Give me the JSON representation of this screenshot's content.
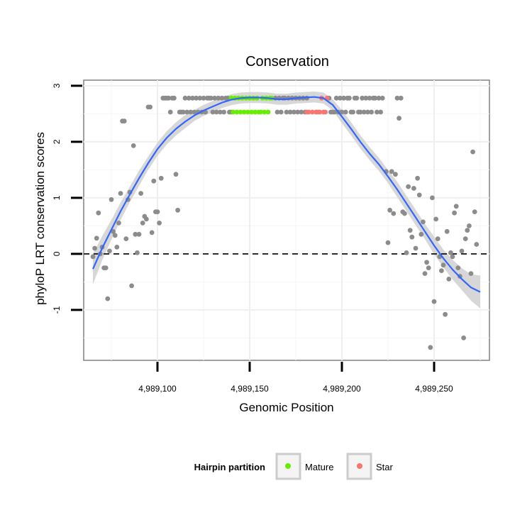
{
  "chart_data": {
    "type": "scatter",
    "title": "Conservation",
    "xlabel": "Genomic Position",
    "ylabel": "phyloP LRT conservation scores",
    "xlim": [
      4989060,
      4989280
    ],
    "ylim": [
      -1.9,
      3.1
    ],
    "x_ticks": [
      4989100,
      4989150,
      4989200,
      4989250
    ],
    "x_tick_labels": [
      "4,989,100",
      "4,989,150",
      "4,989,200",
      "4,989,250"
    ],
    "y_ticks": [
      -1,
      0,
      1,
      2,
      3
    ],
    "y_tick_labels": [
      "-1",
      "0",
      "1",
      "2",
      "3"
    ],
    "reference_line": {
      "y": 0,
      "style": "dashed"
    },
    "grid": true,
    "legend": {
      "title": "Hairpin partition",
      "position": "bottom",
      "entries": [
        {
          "label": "Mature",
          "color": "#66ee00"
        },
        {
          "label": "Star",
          "color": "#f8766d"
        }
      ]
    },
    "colors": {
      "points": "#8c8c8c",
      "mature": "#66ee00",
      "star": "#f8766d",
      "smooth_line": "#3366ff",
      "ribbon": "#d0d0d0",
      "panel_border": "#888888"
    },
    "series": [
      {
        "kind": "points",
        "points": [
          [
            4989065,
            -0.05
          ],
          [
            4989066,
            0.1
          ],
          [
            4989067,
            0.28
          ],
          [
            4989068,
            0.73
          ],
          [
            4989069,
            0.0
          ],
          [
            4989070,
            0.12
          ],
          [
            4989071,
            -0.25
          ],
          [
            4989072,
            -0.25
          ],
          [
            4989073,
            -0.8
          ],
          [
            4989074,
            0.05
          ],
          [
            4989075,
            0.97
          ],
          [
            4989076,
            0.4
          ],
          [
            4989077,
            0.33
          ],
          [
            4989078,
            0.12
          ],
          [
            4989079,
            0.55
          ],
          [
            4989080,
            1.08
          ],
          [
            4989081,
            2.37
          ],
          [
            4989082,
            2.37
          ],
          [
            4989083,
            0.27
          ],
          [
            4989084,
            0.97
          ],
          [
            4989085,
            1.1
          ],
          [
            4989086,
            -0.57
          ],
          [
            4989087,
            1.93
          ],
          [
            4989088,
            0.35
          ],
          [
            4989089,
            0.02
          ],
          [
            4989090,
            0.35
          ],
          [
            4989091,
            1.08
          ],
          [
            4989092,
            0.55
          ],
          [
            4989093,
            0.67
          ],
          [
            4989094,
            0.62
          ],
          [
            4989095,
            2.62
          ],
          [
            4989096,
            2.62
          ],
          [
            4989097,
            0.38
          ],
          [
            4989098,
            1.3
          ],
          [
            4989099,
            0.75
          ],
          [
            4989100,
            0.75
          ],
          [
            4989101,
            0.55
          ],
          [
            4989102,
            1.35
          ],
          [
            4989103,
            2.78
          ],
          [
            4989104,
            2.78
          ],
          [
            4989105,
            2.78
          ],
          [
            4989106,
            2.78
          ],
          [
            4989107,
            2.53
          ],
          [
            4989108,
            2.78
          ],
          [
            4989109,
            2.78
          ],
          [
            4989110,
            1.42
          ],
          [
            4989111,
            0.78
          ],
          [
            4989112,
            2.53
          ],
          [
            4989113,
            2.53
          ],
          [
            4989114,
            2.53
          ],
          [
            4989115,
            2.78
          ],
          [
            4989116,
            2.53
          ],
          [
            4989117,
            2.78
          ],
          [
            4989118,
            2.53
          ],
          [
            4989119,
            2.78
          ],
          [
            4989120,
            2.53
          ],
          [
            4989121,
            2.78
          ],
          [
            4989122,
            2.53
          ],
          [
            4989123,
            2.78
          ],
          [
            4989124,
            2.53
          ],
          [
            4989125,
            2.78
          ],
          [
            4989126,
            2.53
          ],
          [
            4989127,
            2.78
          ],
          [
            4989128,
            2.78
          ],
          [
            4989129,
            2.78
          ],
          [
            4989130,
            2.53
          ],
          [
            4989131,
            2.78
          ],
          [
            4989132,
            2.53
          ],
          [
            4989133,
            2.78
          ],
          [
            4989134,
            2.53
          ],
          [
            4989135,
            2.78
          ],
          [
            4989136,
            2.53
          ],
          [
            4989137,
            2.78
          ],
          [
            4989138,
            2.78
          ],
          [
            4989139,
            2.53
          ],
          [
            4989140,
            2.53
          ],
          [
            4989164,
            2.78
          ],
          [
            4989165,
            2.53
          ],
          [
            4989166,
            2.78
          ],
          [
            4989167,
            2.53
          ],
          [
            4989168,
            2.78
          ],
          [
            4989169,
            2.78
          ],
          [
            4989170,
            2.53
          ],
          [
            4989171,
            2.78
          ],
          [
            4989172,
            2.53
          ],
          [
            4989173,
            2.78
          ],
          [
            4989174,
            2.53
          ],
          [
            4989175,
            2.78
          ],
          [
            4989176,
            2.53
          ],
          [
            4989177,
            2.78
          ],
          [
            4989178,
            2.53
          ],
          [
            4989179,
            2.78
          ],
          [
            4989180,
            2.53
          ],
          [
            4989181,
            2.78
          ],
          [
            4989193,
            2.78
          ],
          [
            4989194,
            2.53
          ],
          [
            4989195,
            2.53
          ],
          [
            4989196,
            2.53
          ],
          [
            4989197,
            2.78
          ],
          [
            4989198,
            2.53
          ],
          [
            4989199,
            2.78
          ],
          [
            4989200,
            2.53
          ],
          [
            4989201,
            2.78
          ],
          [
            4989202,
            2.53
          ],
          [
            4989203,
            2.78
          ],
          [
            4989204,
            2.78
          ],
          [
            4989205,
            2.53
          ],
          [
            4989206,
            2.53
          ],
          [
            4989207,
            2.78
          ],
          [
            4989208,
            2.78
          ],
          [
            4989209,
            2.53
          ],
          [
            4989210,
            2.53
          ],
          [
            4989211,
            2.78
          ],
          [
            4989212,
            2.53
          ],
          [
            4989213,
            2.78
          ],
          [
            4989214,
            2.53
          ],
          [
            4989215,
            2.78
          ],
          [
            4989216,
            2.53
          ],
          [
            4989217,
            2.78
          ],
          [
            4989218,
            2.78
          ],
          [
            4989219,
            2.53
          ],
          [
            4989220,
            2.78
          ],
          [
            4989221,
            2.53
          ],
          [
            4989222,
            2.78
          ],
          [
            4989224,
            1.47
          ],
          [
            4989225,
            0.2
          ],
          [
            4989226,
            0.78
          ],
          [
            4989227,
            1.47
          ],
          [
            4989228,
            0.72
          ],
          [
            4989229,
            1.42
          ],
          [
            4989230,
            2.78
          ],
          [
            4989231,
            2.42
          ],
          [
            4989232,
            2.78
          ],
          [
            4989233,
            0.75
          ],
          [
            4989234,
            0.72
          ],
          [
            4989235,
            0.02
          ],
          [
            4989236,
            1.2
          ],
          [
            4989237,
            0.42
          ],
          [
            4989238,
            0.3
          ],
          [
            4989239,
            1.17
          ],
          [
            4989240,
            0.1
          ],
          [
            4989241,
            1.35
          ],
          [
            4989242,
            1.05
          ],
          [
            4989243,
            0.35
          ],
          [
            4989244,
            0.57
          ],
          [
            4989245,
            -0.35
          ],
          [
            4989246,
            -0.15
          ],
          [
            4989247,
            -0.25
          ],
          [
            4989248,
            -1.67
          ],
          [
            4989249,
            1.0
          ],
          [
            4989250,
            -0.85
          ],
          [
            4989251,
            0.62
          ],
          [
            4989252,
            0.27
          ],
          [
            4989253,
            -0.05
          ],
          [
            4989254,
            -0.3
          ],
          [
            4989255,
            -0.2
          ],
          [
            4989256,
            -1.08
          ],
          [
            4989257,
            0.4
          ],
          [
            4989258,
            -0.45
          ],
          [
            4989259,
            0.02
          ],
          [
            4989260,
            -0.05
          ],
          [
            4989261,
            0.73
          ],
          [
            4989262,
            0.85
          ],
          [
            4989263,
            -0.25
          ],
          [
            4989264,
            -0.4
          ],
          [
            4989265,
            0.05
          ],
          [
            4989266,
            -1.5
          ],
          [
            4989267,
            0.27
          ],
          [
            4989268,
            0.42
          ],
          [
            4989269,
            0.5
          ],
          [
            4989270,
            -0.35
          ],
          [
            4989271,
            1.82
          ],
          [
            4989272,
            0.75
          ],
          [
            4989273,
            0.17
          ]
        ]
      },
      {
        "name": "Mature",
        "points": [
          [
            4989140,
            2.78
          ],
          [
            4989141,
            2.53
          ],
          [
            4989142,
            2.78
          ],
          [
            4989143,
            2.53
          ],
          [
            4989144,
            2.78
          ],
          [
            4989145,
            2.53
          ],
          [
            4989146,
            2.78
          ],
          [
            4989147,
            2.53
          ],
          [
            4989148,
            2.78
          ],
          [
            4989149,
            2.53
          ],
          [
            4989150,
            2.78
          ],
          [
            4989151,
            2.53
          ],
          [
            4989152,
            2.78
          ],
          [
            4989153,
            2.53
          ],
          [
            4989154,
            2.78
          ],
          [
            4989155,
            2.53
          ],
          [
            4989156,
            2.53
          ],
          [
            4989157,
            2.78
          ],
          [
            4989158,
            2.53
          ],
          [
            4989159,
            2.78
          ],
          [
            4989160,
            2.53
          ],
          [
            4989161,
            2.78
          ],
          [
            4989162,
            2.78
          ]
        ]
      },
      {
        "name": "Star",
        "points": [
          [
            4989181,
            2.53
          ],
          [
            4989182,
            2.53
          ],
          [
            4989184,
            2.53
          ],
          [
            4989186,
            2.53
          ],
          [
            4989187,
            2.53
          ],
          [
            4989188,
            2.53
          ],
          [
            4989189,
            2.78
          ],
          [
            4989190,
            2.53
          ],
          [
            4989191,
            2.53
          ],
          [
            4989192,
            2.78
          ]
        ]
      }
    ],
    "smooth": {
      "x": [
        4989065,
        4989070,
        4989075,
        4989080,
        4989085,
        4989090,
        4989095,
        4989100,
        4989105,
        4989110,
        4989115,
        4989120,
        4989125,
        4989130,
        4989135,
        4989140,
        4989145,
        4989150,
        4989155,
        4989160,
        4989165,
        4989170,
        4989175,
        4989180,
        4989185,
        4989190,
        4989195,
        4989200,
        4989205,
        4989210,
        4989215,
        4989220,
        4989225,
        4989230,
        4989235,
        4989240,
        4989245,
        4989250,
        4989255,
        4989260,
        4989265,
        4989270,
        4989275
      ],
      "y": [
        -0.27,
        0.1,
        0.43,
        0.76,
        1.06,
        1.35,
        1.62,
        1.87,
        2.07,
        2.23,
        2.36,
        2.47,
        2.56,
        2.63,
        2.7,
        2.75,
        2.78,
        2.79,
        2.79,
        2.78,
        2.76,
        2.76,
        2.78,
        2.79,
        2.8,
        2.78,
        2.66,
        2.45,
        2.23,
        2.0,
        1.79,
        1.6,
        1.38,
        1.15,
        0.9,
        0.65,
        0.4,
        0.15,
        -0.08,
        -0.28,
        -0.45,
        -0.6,
        -0.68
      ],
      "se": [
        0.14,
        0.11,
        0.09,
        0.08,
        0.07,
        0.07,
        0.06,
        0.06,
        0.06,
        0.06,
        0.06,
        0.05,
        0.05,
        0.05,
        0.05,
        0.05,
        0.05,
        0.05,
        0.05,
        0.05,
        0.05,
        0.05,
        0.05,
        0.05,
        0.05,
        0.05,
        0.05,
        0.06,
        0.06,
        0.06,
        0.06,
        0.06,
        0.06,
        0.07,
        0.07,
        0.07,
        0.07,
        0.08,
        0.08,
        0.09,
        0.1,
        0.12,
        0.15
      ]
    }
  }
}
